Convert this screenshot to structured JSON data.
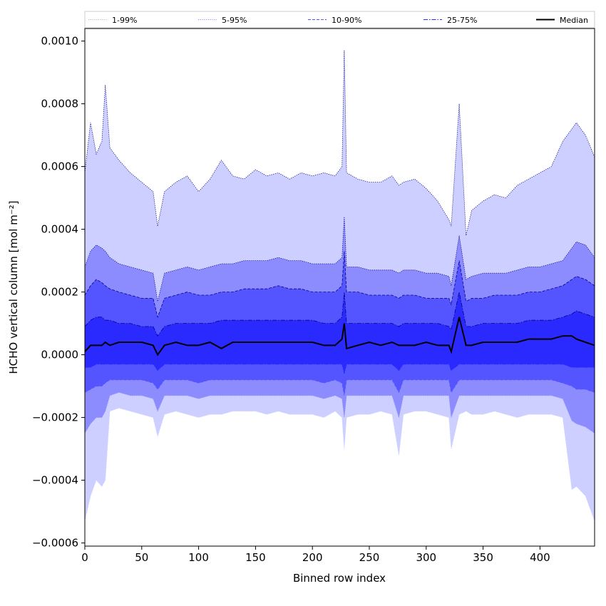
{
  "chart_data": {
    "type": "area",
    "title": "",
    "xlabel": "Binned row index",
    "ylabel": "HCHO vertical column [mol m⁻²]",
    "xlim": [
      0,
      448
    ],
    "ylim": [
      -0.00061,
      0.00104
    ],
    "x_ticks": [
      0,
      50,
      100,
      150,
      200,
      250,
      300,
      350,
      400
    ],
    "y_ticks": [
      -0.0006,
      -0.0004,
      -0.0002,
      0.0,
      0.0002,
      0.0004,
      0.0006,
      0.0008,
      0.001
    ],
    "y_tick_labels": [
      "−0.0006",
      "−0.0004",
      "−0.0002",
      "0.0000",
      "0.0002",
      "0.0004",
      "0.0006",
      "0.0008",
      "0.0010"
    ],
    "grid": false,
    "legend_position": "top, spanning width",
    "x": [
      0,
      5,
      10,
      15,
      18,
      22,
      30,
      40,
      50,
      60,
      64,
      70,
      80,
      90,
      100,
      110,
      120,
      130,
      140,
      150,
      160,
      170,
      180,
      190,
      200,
      210,
      220,
      226,
      228,
      230,
      240,
      250,
      260,
      270,
      276,
      280,
      290,
      300,
      310,
      320,
      322,
      329,
      335,
      340,
      350,
      360,
      370,
      380,
      390,
      400,
      410,
      420,
      428,
      432,
      440,
      448
    ],
    "bands": [
      {
        "name": "1-99%",
        "color": "#cccfff",
        "line_style": "dotted",
        "upper": [
          0.00058,
          0.00074,
          0.00064,
          0.00068,
          0.00086,
          0.00066,
          0.00062,
          0.00058,
          0.00055,
          0.00052,
          0.00041,
          0.00052,
          0.00055,
          0.00057,
          0.00052,
          0.00056,
          0.00062,
          0.00057,
          0.00056,
          0.00059,
          0.00057,
          0.00058,
          0.00056,
          0.00058,
          0.00057,
          0.00058,
          0.00057,
          0.0006,
          0.00097,
          0.00058,
          0.00056,
          0.00055,
          0.00055,
          0.00057,
          0.00054,
          0.00055,
          0.00056,
          0.00053,
          0.00049,
          0.00043,
          0.00041,
          0.0008,
          0.00038,
          0.00046,
          0.00049,
          0.00051,
          0.0005,
          0.00054,
          0.00056,
          0.00058,
          0.0006,
          0.00068,
          0.00072,
          0.00074,
          0.0007,
          0.00063
        ],
        "lower": [
          -0.00053,
          -0.00045,
          -0.0004,
          -0.00042,
          -0.0004,
          -0.00018,
          -0.00017,
          -0.00018,
          -0.00019,
          -0.0002,
          -0.00026,
          -0.00019,
          -0.00018,
          -0.00019,
          -0.0002,
          -0.00019,
          -0.00019,
          -0.00018,
          -0.00018,
          -0.00018,
          -0.00019,
          -0.00018,
          -0.00019,
          -0.00019,
          -0.00019,
          -0.0002,
          -0.00018,
          -0.0002,
          -0.0003,
          -0.0002,
          -0.00019,
          -0.00019,
          -0.00018,
          -0.00019,
          -0.00032,
          -0.00019,
          -0.00018,
          -0.00018,
          -0.00019,
          -0.0002,
          -0.0003,
          -0.00019,
          -0.00018,
          -0.00019,
          -0.00019,
          -0.00018,
          -0.00019,
          -0.0002,
          -0.00019,
          -0.00019,
          -0.00019,
          -0.0002,
          -0.00043,
          -0.00042,
          -0.00045,
          -0.00053
        ]
      },
      {
        "name": "5-95%",
        "color": "#8c8cff",
        "line_style": "dotted",
        "upper": [
          0.00028,
          0.00033,
          0.00035,
          0.00034,
          0.00033,
          0.00031,
          0.00029,
          0.00028,
          0.00027,
          0.00026,
          0.00017,
          0.00026,
          0.00027,
          0.00028,
          0.00027,
          0.00028,
          0.00029,
          0.00029,
          0.0003,
          0.0003,
          0.0003,
          0.00031,
          0.0003,
          0.0003,
          0.00029,
          0.00029,
          0.00029,
          0.00031,
          0.00044,
          0.00028,
          0.00028,
          0.00027,
          0.00027,
          0.00027,
          0.00026,
          0.00027,
          0.00027,
          0.00026,
          0.00026,
          0.00025,
          0.00022,
          0.00038,
          0.00024,
          0.00025,
          0.00026,
          0.00026,
          0.00026,
          0.00027,
          0.00028,
          0.00028,
          0.00029,
          0.0003,
          0.00034,
          0.00036,
          0.00035,
          0.00031
        ],
        "lower": [
          -0.00025,
          -0.00022,
          -0.0002,
          -0.0002,
          -0.00018,
          -0.00013,
          -0.00012,
          -0.00013,
          -0.00013,
          -0.00014,
          -0.00018,
          -0.00013,
          -0.00013,
          -0.00013,
          -0.00014,
          -0.00013,
          -0.00013,
          -0.00013,
          -0.00013,
          -0.00013,
          -0.00013,
          -0.00013,
          -0.00013,
          -0.00013,
          -0.00013,
          -0.00014,
          -0.00013,
          -0.00014,
          -0.0002,
          -0.00013,
          -0.00013,
          -0.00013,
          -0.00013,
          -0.00013,
          -0.0002,
          -0.00013,
          -0.00013,
          -0.00013,
          -0.00013,
          -0.00013,
          -0.0002,
          -0.00013,
          -0.00013,
          -0.00013,
          -0.00013,
          -0.00013,
          -0.00013,
          -0.00013,
          -0.00013,
          -0.00013,
          -0.00013,
          -0.00014,
          -0.00021,
          -0.00022,
          -0.00023,
          -0.00025
        ]
      },
      {
        "name": "10-90%",
        "color": "#5555ff",
        "line_style": "dashed",
        "upper": [
          0.00019,
          0.00022,
          0.00024,
          0.00023,
          0.00022,
          0.00021,
          0.0002,
          0.00019,
          0.00018,
          0.00018,
          0.00012,
          0.00018,
          0.00019,
          0.0002,
          0.00019,
          0.00019,
          0.0002,
          0.0002,
          0.00021,
          0.00021,
          0.00021,
          0.00022,
          0.00021,
          0.00021,
          0.0002,
          0.0002,
          0.0002,
          0.00022,
          0.00033,
          0.0002,
          0.0002,
          0.00019,
          0.00019,
          0.00019,
          0.00018,
          0.00019,
          0.00019,
          0.00018,
          0.00018,
          0.00018,
          0.00016,
          0.0003,
          0.00017,
          0.00018,
          0.00018,
          0.00019,
          0.00019,
          0.00019,
          0.0002,
          0.0002,
          0.00021,
          0.00022,
          0.00024,
          0.00025,
          0.00024,
          0.00022
        ],
        "lower": [
          -0.00012,
          -0.00011,
          -0.0001,
          -0.0001,
          -9e-05,
          -8e-05,
          -8e-05,
          -8e-05,
          -8e-05,
          -9e-05,
          -0.00011,
          -8e-05,
          -8e-05,
          -8e-05,
          -9e-05,
          -8e-05,
          -8e-05,
          -8e-05,
          -8e-05,
          -8e-05,
          -8e-05,
          -8e-05,
          -8e-05,
          -8e-05,
          -8e-05,
          -9e-05,
          -8e-05,
          -9e-05,
          -0.00013,
          -8e-05,
          -8e-05,
          -8e-05,
          -8e-05,
          -8e-05,
          -0.00012,
          -8e-05,
          -8e-05,
          -8e-05,
          -8e-05,
          -8e-05,
          -0.00012,
          -8e-05,
          -8e-05,
          -8e-05,
          -8e-05,
          -8e-05,
          -8e-05,
          -8e-05,
          -8e-05,
          -8e-05,
          -8e-05,
          -9e-05,
          -0.0001,
          -0.00011,
          -0.00011,
          -0.00012
        ]
      },
      {
        "name": "25-75%",
        "color": "#2a2aff",
        "line_style": "dashdot",
        "upper": [
          9e-05,
          0.00011,
          0.00012,
          0.00012,
          0.00011,
          0.00011,
          0.0001,
          0.0001,
          9e-05,
          9e-05,
          6e-05,
          9e-05,
          0.0001,
          0.0001,
          0.0001,
          0.0001,
          0.00011,
          0.00011,
          0.00011,
          0.00011,
          0.00011,
          0.00011,
          0.00011,
          0.00011,
          0.00011,
          0.0001,
          0.0001,
          0.00012,
          0.0002,
          0.0001,
          0.0001,
          0.0001,
          0.0001,
          0.0001,
          9e-05,
          0.0001,
          0.0001,
          0.0001,
          0.0001,
          9e-05,
          8e-05,
          0.0002,
          9e-05,
          9e-05,
          0.0001,
          0.0001,
          0.0001,
          0.0001,
          0.00011,
          0.00011,
          0.00011,
          0.00012,
          0.00013,
          0.00014,
          0.00013,
          0.00012
        ],
        "lower": [
          -4e-05,
          -4e-05,
          -3e-05,
          -3e-05,
          -3e-05,
          -3e-05,
          -3e-05,
          -3e-05,
          -3e-05,
          -3e-05,
          -5e-05,
          -3e-05,
          -3e-05,
          -3e-05,
          -3e-05,
          -3e-05,
          -3e-05,
          -3e-05,
          -3e-05,
          -3e-05,
          -3e-05,
          -3e-05,
          -3e-05,
          -3e-05,
          -3e-05,
          -3e-05,
          -3e-05,
          -3e-05,
          -6e-05,
          -3e-05,
          -3e-05,
          -3e-05,
          -3e-05,
          -3e-05,
          -5e-05,
          -3e-05,
          -3e-05,
          -3e-05,
          -3e-05,
          -3e-05,
          -5e-05,
          -3e-05,
          -3e-05,
          -3e-05,
          -3e-05,
          -3e-05,
          -3e-05,
          -3e-05,
          -3e-05,
          -3e-05,
          -3e-05,
          -3e-05,
          -4e-05,
          -4e-05,
          -4e-05,
          -4e-05
        ]
      }
    ],
    "median": {
      "name": "Median",
      "color": "#000000",
      "values": [
        1e-05,
        3e-05,
        3e-05,
        3e-05,
        4e-05,
        3e-05,
        4e-05,
        4e-05,
        4e-05,
        3e-05,
        0.0,
        3e-05,
        4e-05,
        3e-05,
        3e-05,
        4e-05,
        2e-05,
        4e-05,
        4e-05,
        4e-05,
        4e-05,
        4e-05,
        4e-05,
        4e-05,
        4e-05,
        3e-05,
        3e-05,
        5e-05,
        0.0001,
        2e-05,
        3e-05,
        4e-05,
        3e-05,
        4e-05,
        3e-05,
        3e-05,
        3e-05,
        4e-05,
        3e-05,
        3e-05,
        1e-05,
        0.00012,
        3e-05,
        3e-05,
        4e-05,
        4e-05,
        4e-05,
        4e-05,
        5e-05,
        5e-05,
        5e-05,
        6e-05,
        6e-05,
        5e-05,
        4e-05,
        3e-05
      ]
    },
    "legend": [
      "1-99%",
      "5-95%",
      "10-90%",
      "25-75%",
      "Median"
    ]
  }
}
